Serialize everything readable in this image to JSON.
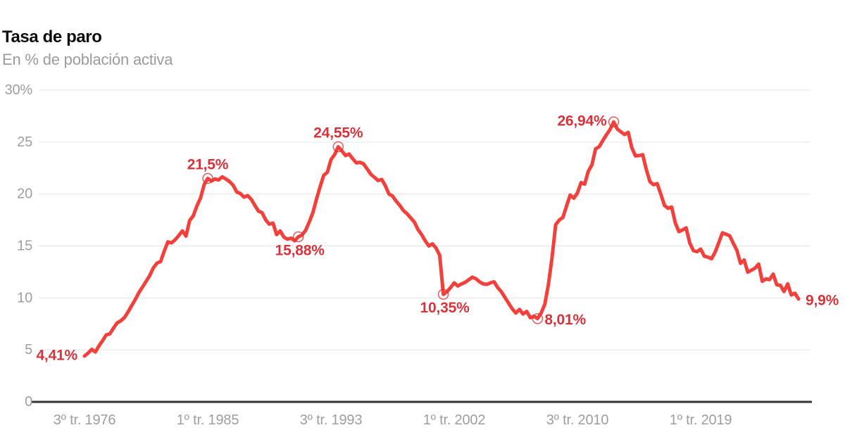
{
  "chart_data": {
    "type": "line",
    "title": "Tasa de paro",
    "subtitle": "En % de población activa",
    "unit": "%",
    "frequency": "quarterly",
    "x_start": "3º tr. 1976",
    "ylim": [
      0,
      30
    ],
    "grid": "horizontal",
    "line_color": "#f2413c",
    "annotation_color": "#d6343a",
    "axis_colors": {
      "grid": "#e4e4e4",
      "baseline": "#333333",
      "tick_text": "#9e9e9e"
    },
    "yticks": [
      {
        "value": 30,
        "label": "30%"
      },
      {
        "value": 25,
        "label": "25"
      },
      {
        "value": 20,
        "label": "20"
      },
      {
        "value": 15,
        "label": "15"
      },
      {
        "value": 10,
        "label": "10"
      },
      {
        "value": 5,
        "label": "5"
      },
      {
        "value": 0,
        "label": "0"
      }
    ],
    "xticks": [
      {
        "index": 0,
        "label": "3º tr. 1976"
      },
      {
        "index": 34,
        "label": "1º tr. 1985"
      },
      {
        "index": 68,
        "label": "3º tr. 1993"
      },
      {
        "index": 102,
        "label": "1º tr. 2002"
      },
      {
        "index": 136,
        "label": "3º tr. 2010"
      },
      {
        "index": 170,
        "label": "1º tr. 2019"
      }
    ],
    "values": [
      4.41,
      4.7,
      5.05,
      4.8,
      5.4,
      5.9,
      6.45,
      6.55,
      7.1,
      7.6,
      7.8,
      8.1,
      8.65,
      9.25,
      9.85,
      10.5,
      11.05,
      11.6,
      12.15,
      12.9,
      13.35,
      13.5,
      14.5,
      15.4,
      15.3,
      15.6,
      16.0,
      16.45,
      15.95,
      17.45,
      17.9,
      18.85,
      19.6,
      20.9,
      21.5,
      21.25,
      21.45,
      21.35,
      21.65,
      21.45,
      21.2,
      20.85,
      20.2,
      20.05,
      19.7,
      19.85,
      19.5,
      18.9,
      18.35,
      18.2,
      17.5,
      17.1,
      17.2,
      16.1,
      16.45,
      15.85,
      15.65,
      15.75,
      15.5,
      15.88,
      16.05,
      16.5,
      17.3,
      18.2,
      19.5,
      20.7,
      21.8,
      22.1,
      23.3,
      23.8,
      24.55,
      24.15,
      23.7,
      23.85,
      23.4,
      23.0,
      23.05,
      22.9,
      22.4,
      21.9,
      21.6,
      21.3,
      21.4,
      20.8,
      20.0,
      19.8,
      19.3,
      18.9,
      18.4,
      18.1,
      17.7,
      17.3,
      16.6,
      16.1,
      15.5,
      15.0,
      15.2,
      14.8,
      14.1,
      10.35,
      10.6,
      11.0,
      11.45,
      11.15,
      11.35,
      11.5,
      11.75,
      12.0,
      11.85,
      11.55,
      11.35,
      11.3,
      11.45,
      11.55,
      11.0,
      10.6,
      10.05,
      9.5,
      8.95,
      8.55,
      8.9,
      8.45,
      8.7,
      8.1,
      8.25,
      8.01,
      8.55,
      9.4,
      11.3,
      13.9,
      17.05,
      17.5,
      17.75,
      18.85,
      19.9,
      19.6,
      20.1,
      21.1,
      20.95,
      22.2,
      22.8,
      24.35,
      24.55,
      25.15,
      25.7,
      26.2,
      26.94,
      26.26,
      25.98,
      25.73,
      25.93,
      24.47,
      23.67,
      23.7,
      23.78,
      22.37,
      21.18,
      20.9,
      21.0,
      20.0,
      18.91,
      18.63,
      18.75,
      17.22,
      16.38,
      16.55,
      16.74,
      15.28,
      14.55,
      14.45,
      14.7,
      14.02,
      13.92,
      13.78,
      14.41,
      15.33,
      16.26,
      16.13,
      15.98,
      15.26,
      14.57,
      13.33,
      13.65,
      12.48,
      12.67,
      12.87,
      13.26,
      11.6,
      11.84,
      11.76,
      12.29,
      11.27,
      11.21,
      10.61,
      11.36,
      10.29,
      10.45,
      9.9
    ],
    "annotations": [
      {
        "index": 0,
        "label": "4,41%",
        "placement": "left",
        "ring": false
      },
      {
        "index": 34,
        "label": "21,5%",
        "placement": "above",
        "ring": true
      },
      {
        "index": 59,
        "label": "15,88%",
        "placement": "below",
        "ring": true
      },
      {
        "index": 70,
        "label": "24,55%",
        "placement": "above",
        "ring": true
      },
      {
        "index": 99,
        "label": "10,35%",
        "placement": "below",
        "ring": true
      },
      {
        "index": 125,
        "label": "8,01%",
        "placement": "right",
        "ring": true
      },
      {
        "index": 146,
        "label": "26,94%",
        "placement": "left",
        "ring": true
      },
      {
        "index": 197,
        "label": "9,9%",
        "placement": "right",
        "ring": false
      }
    ]
  }
}
